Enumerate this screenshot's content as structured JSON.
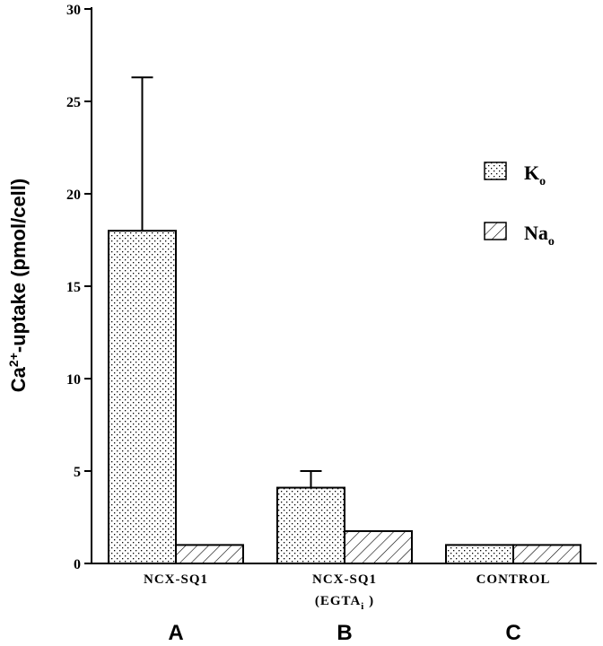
{
  "chart_data": {
    "type": "bar",
    "ylabel_main": "Ca",
    "ylabel_sup": "2+",
    "ylabel_rest": "-uptake  (pmol/cell)",
    "ylim": [
      0,
      30
    ],
    "yticks": [
      0,
      5,
      10,
      15,
      20,
      25,
      30
    ],
    "categories": [
      {
        "line1": "NCX-SQ1",
        "line2_main": "",
        "line2_sub": "",
        "line2_end": "",
        "group": "A"
      },
      {
        "line1": "NCX-SQ1",
        "line2_main": "(EGTA",
        "line2_sub": "i",
        "line2_end": " )",
        "group": "B"
      },
      {
        "line1": "CONTROL",
        "line2_main": "",
        "line2_sub": "",
        "line2_end": "",
        "group": "C"
      }
    ],
    "series": [
      {
        "name_main": "K",
        "name_sub": "o",
        "values": [
          18.0,
          4.1,
          1.0
        ],
        "error_upper": [
          8.3,
          0.9,
          null
        ],
        "pattern": "dots"
      },
      {
        "name_main": "Na",
        "name_sub": "o",
        "values": [
          1.0,
          1.75,
          1.0
        ],
        "error_upper": [
          null,
          null,
          null
        ],
        "pattern": "hatch"
      }
    ],
    "legend_position": "right-upper",
    "grid": false
  }
}
